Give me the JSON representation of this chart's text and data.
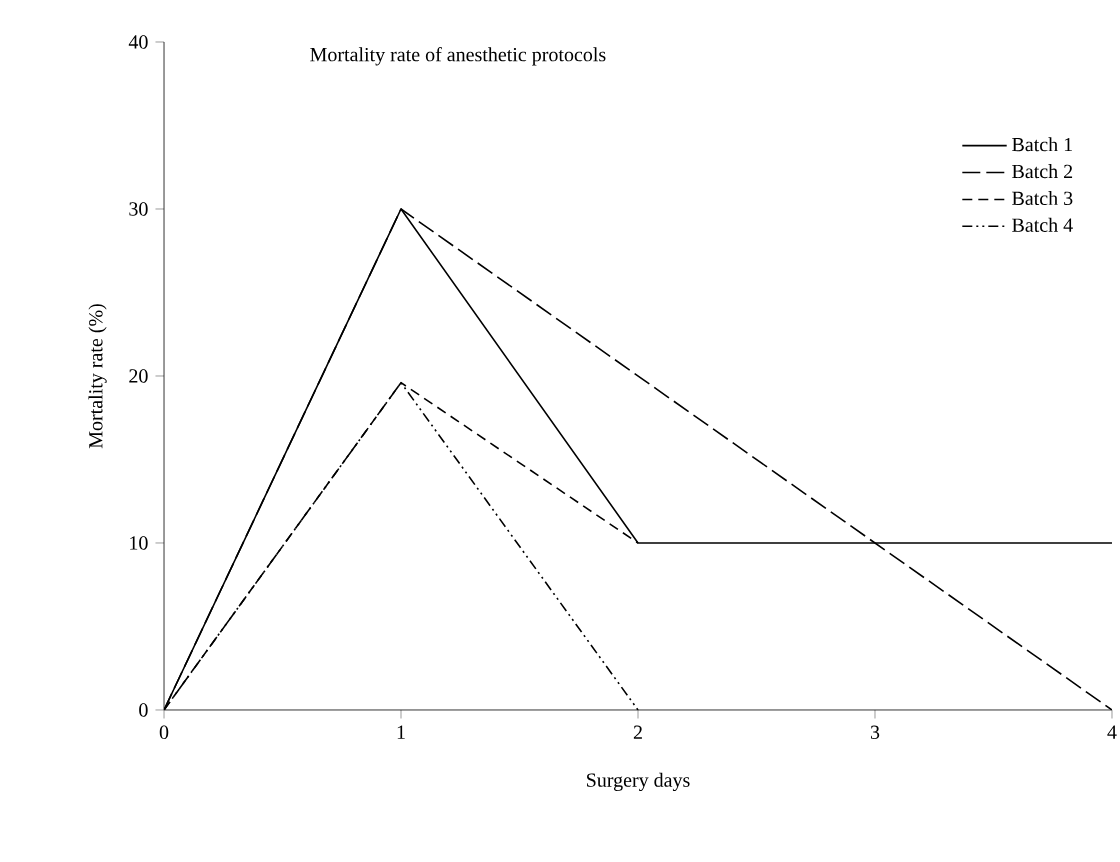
{
  "chart_data": {
    "type": "line",
    "title": "Mortality rate of anesthetic protocols",
    "xlabel": "Surgery days",
    "ylabel": "Mortality rate (%)",
    "xlim": [
      0,
      4
    ],
    "xticks": [
      0,
      1,
      2,
      3,
      4
    ],
    "ylim": [
      0,
      40
    ],
    "yticks": [
      0,
      10,
      20,
      30,
      40
    ],
    "legend": "top right",
    "grid": false,
    "marker": "none",
    "series": [
      {
        "name": "Batch 1",
        "color": "#000000",
        "line_style": "solid",
        "x": [
          0,
          1,
          2,
          3,
          4
        ],
        "values": [
          0,
          30,
          10,
          10,
          10
        ]
      },
      {
        "name": "Batch 2",
        "color": "#000000",
        "line_style": "longdashed",
        "x": [
          0,
          1,
          2,
          3,
          4
        ],
        "values": [
          0,
          30,
          20,
          10,
          0
        ]
      },
      {
        "name": "Batch 3",
        "color": "#000000",
        "line_style": "dashed",
        "x": [
          0,
          1,
          2
        ],
        "values": [
          0,
          19.6,
          10
        ]
      },
      {
        "name": "Batch 4",
        "color": "#000000",
        "line_style": "dashdotdotted",
        "x": [
          0,
          1,
          2
        ],
        "values": [
          0,
          19.6,
          0
        ]
      }
    ]
  }
}
